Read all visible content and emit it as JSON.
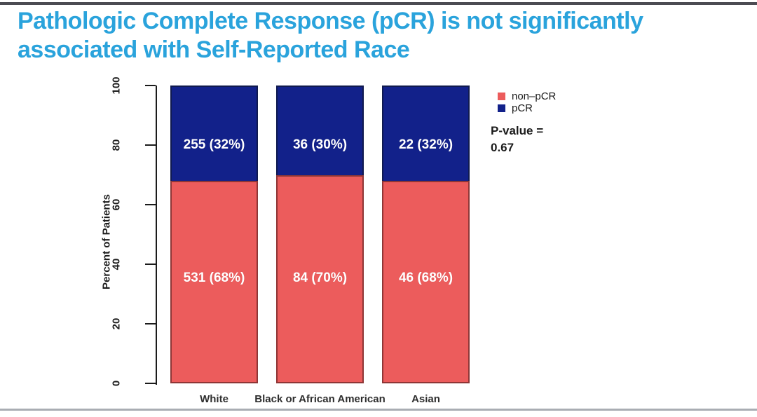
{
  "slide": {
    "title_line1": "Pathologic Complete Response (pCR) is not significantly",
    "title_line2": "associated with Self-Reported Race",
    "title_color": "#2aa3dc"
  },
  "chart_data": {
    "type": "bar",
    "stacked": true,
    "categories": [
      "White",
      "Black or African American",
      "Asian"
    ],
    "series": [
      {
        "name": "non–pCR",
        "color": "#ec5c5c",
        "values": [
          68,
          70,
          68
        ],
        "counts": [
          531,
          84,
          46
        ],
        "labels": [
          "531 (68%)",
          "84 (70%)",
          "46 (68%)"
        ]
      },
      {
        "name": "pCR",
        "color": "#12218a",
        "values": [
          32,
          30,
          32
        ],
        "counts": [
          255,
          36,
          22
        ],
        "labels": [
          "255 (32%)",
          "36 (30%)",
          "22 (32%)"
        ]
      }
    ],
    "xlabel": "",
    "ylabel": "Percent of Patients",
    "ylim": [
      0,
      100
    ],
    "yticks": [
      0,
      20,
      40,
      60,
      80,
      100
    ],
    "grid": false,
    "legend_position": "right",
    "annotation": {
      "p_value_label": "P-value =",
      "p_value": "0.67"
    }
  }
}
